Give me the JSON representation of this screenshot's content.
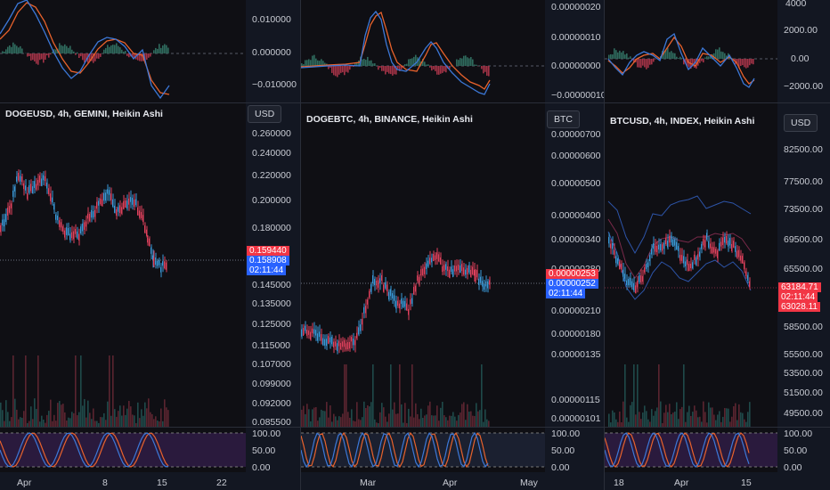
{
  "colors": {
    "up": "#3a9ad9",
    "down": "#e0415d",
    "bg": "#0f0f14",
    "price_up_tag": "#2962ff",
    "price_dn_tag": "#f23645"
  },
  "charts": [
    {
      "title": "DOGEUSD, 4h, GEMINI, Heikin Ashi",
      "currency": "USD",
      "price_axis": [
        "0.260000",
        "0.240000",
        "0.220000",
        "0.200000",
        "0.180000",
        "0.145000",
        "0.135000",
        "0.125000",
        "0.115000",
        "0.107000",
        "0.099000",
        "0.092000",
        "0.085500"
      ],
      "macd_axis": [
        "0.010000",
        "0.000000",
        "−0.010000"
      ],
      "stoch_axis": [
        "100.00",
        "50.00",
        "0.00"
      ],
      "tags": {
        "a": "0.159440",
        "b": "0.158908",
        "c": "02:11:44"
      }
    },
    {
      "title": "DOGEBTC, 4h, BINANCE, Heikin Ashi",
      "currency": "BTC",
      "price_axis": [
        "0.00000700",
        "0.00000600",
        "0.00000500",
        "0.00000400",
        "0.00000340",
        "0.00000280",
        "0.00000210",
        "0.00000180",
        "0.00000135",
        "0.00000115",
        "0.00000101"
      ],
      "macd_axis": [
        "0.00000020",
        "0.00000010",
        "0.00000000",
        "−0.00000010"
      ],
      "stoch_axis": [
        "100.00",
        "50.00",
        "0.00"
      ],
      "tags": {
        "a": "0.00000253",
        "b": "0.00000252",
        "c": "02:11:44"
      }
    },
    {
      "title": "BTCUSD, 4h, INDEX, Heikin Ashi",
      "currency": "USD",
      "price_axis": [
        "82500.00",
        "77500.00",
        "73500.00",
        "69500.00",
        "65500.00",
        "58500.00",
        "55500.00",
        "53500.00",
        "51500.00",
        "49500.00"
      ],
      "macd_axis": [
        "4000",
        "2000.00",
        "0.00",
        "−2000.00"
      ],
      "stoch_axis": [
        "100.00",
        "50.00",
        "0.00"
      ],
      "tags": {
        "a": "63184.71",
        "b": "02:11:44",
        "c": "63028.11"
      }
    }
  ],
  "time_axis": {
    "c1": [
      "Apr",
      "8",
      "15",
      "22"
    ],
    "c2": [
      "Mar",
      "Apr",
      "May"
    ],
    "c3": [
      "18",
      "Apr",
      "15"
    ]
  }
}
